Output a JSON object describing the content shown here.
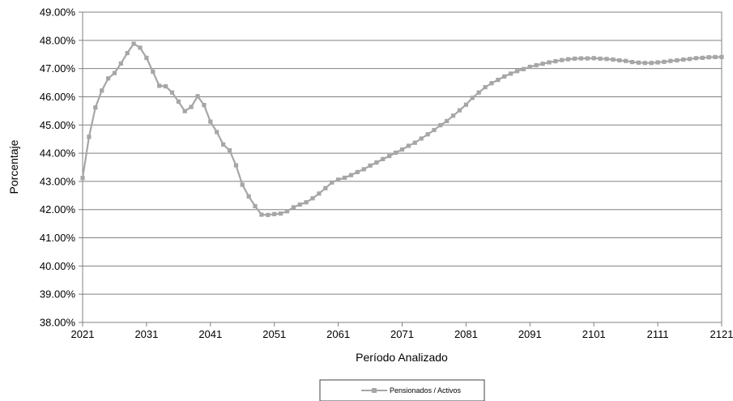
{
  "chart_data": {
    "type": "line",
    "xlabel": "Período Analizado",
    "ylabel": "Porcentaje",
    "xlim": [
      2021,
      2121
    ],
    "ylim": [
      38.0,
      49.0
    ],
    "x_ticks": [
      "2021",
      "2031",
      "2041",
      "2051",
      "2061",
      "2071",
      "2081",
      "2091",
      "2101",
      "2111",
      "2121"
    ],
    "y_ticks": [
      "38.00%",
      "39.00%",
      "40.00%",
      "41.00%",
      "42.00%",
      "43.00%",
      "44.00%",
      "45.00%",
      "46.00%",
      "47.00%",
      "48.00%",
      "49.00%"
    ],
    "grid": "horizontal",
    "legend_position": "bottom-center",
    "series": [
      {
        "name": "Pensionados / Activos",
        "color": "#a6a6a6",
        "marker": "square",
        "x": [
          2021,
          2022,
          2023,
          2024,
          2025,
          2026,
          2027,
          2028,
          2029,
          2030,
          2031,
          2032,
          2033,
          2034,
          2035,
          2036,
          2037,
          2038,
          2039,
          2040,
          2041,
          2042,
          2043,
          2044,
          2045,
          2046,
          2047,
          2048,
          2049,
          2050,
          2051,
          2052,
          2053,
          2054,
          2055,
          2056,
          2057,
          2058,
          2059,
          2060,
          2061,
          2062,
          2063,
          2064,
          2065,
          2066,
          2067,
          2068,
          2069,
          2070,
          2071,
          2072,
          2073,
          2074,
          2075,
          2076,
          2077,
          2078,
          2079,
          2080,
          2081,
          2082,
          2083,
          2084,
          2085,
          2086,
          2087,
          2088,
          2089,
          2090,
          2091,
          2092,
          2093,
          2094,
          2095,
          2096,
          2097,
          2098,
          2099,
          2100,
          2101,
          2102,
          2103,
          2104,
          2105,
          2106,
          2107,
          2108,
          2109,
          2110,
          2111,
          2112,
          2113,
          2114,
          2115,
          2116,
          2117,
          2118,
          2119,
          2120,
          2121
        ],
        "y": [
          43.12,
          44.58,
          45.62,
          46.22,
          46.65,
          46.84,
          47.18,
          47.55,
          47.88,
          47.74,
          47.38,
          46.89,
          46.39,
          46.37,
          46.15,
          45.83,
          45.49,
          45.64,
          46.02,
          45.71,
          45.12,
          44.75,
          44.31,
          44.1,
          43.57,
          42.88,
          42.47,
          42.12,
          41.82,
          41.81,
          41.84,
          41.86,
          41.94,
          42.08,
          42.18,
          42.26,
          42.4,
          42.57,
          42.76,
          42.96,
          43.06,
          43.13,
          43.22,
          43.33,
          43.43,
          43.56,
          43.67,
          43.79,
          43.9,
          44.02,
          44.13,
          44.26,
          44.37,
          44.52,
          44.67,
          44.82,
          44.99,
          45.14,
          45.33,
          45.52,
          45.72,
          45.96,
          46.15,
          46.34,
          46.48,
          46.6,
          46.72,
          46.82,
          46.91,
          46.98,
          47.06,
          47.12,
          47.17,
          47.22,
          47.26,
          47.3,
          47.33,
          47.35,
          47.36,
          47.36,
          47.37,
          47.35,
          47.34,
          47.32,
          47.29,
          47.27,
          47.23,
          47.21,
          47.2,
          47.2,
          47.22,
          47.24,
          47.27,
          47.29,
          47.32,
          47.34,
          47.37,
          47.38,
          47.4,
          47.41,
          47.41
        ]
      }
    ]
  }
}
